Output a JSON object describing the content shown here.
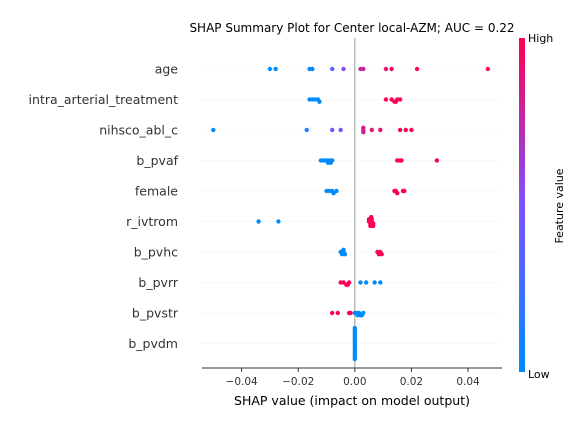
{
  "chart_data": {
    "type": "scatter",
    "title": "SHAP Summary Plot for Center local-AZM; AUC = 0.22",
    "xlabel": "SHAP value (impact on model output)",
    "ylabel": "",
    "xlim": [
      -0.054,
      0.052
    ],
    "xticks": [
      -0.04,
      -0.02,
      0.0,
      0.02,
      0.04
    ],
    "xtick_labels": [
      "−0.04",
      "−0.02",
      "0.00",
      "0.02",
      "0.04"
    ],
    "grid": false,
    "features": [
      "age",
      "intra_arterial_treatment",
      "nihsco_abl_c",
      "b_pvaf",
      "female",
      "r_ivtrom",
      "b_pvhc",
      "b_pvrr",
      "b_pvstr",
      "b_pvdm"
    ],
    "colorbar": {
      "label": "Feature value",
      "high_label": "High",
      "low_label": "Low",
      "low_color": "#008bfb",
      "mid_color": "#7c52ff",
      "high_color": "#ff0052"
    },
    "points": [
      [
        {
          "x": -0.03,
          "c": 0.0
        },
        {
          "x": -0.028,
          "c": 0.0
        },
        {
          "x": -0.016,
          "c": 0.0
        },
        {
          "x": -0.015,
          "c": 0.05
        },
        {
          "x": -0.008,
          "c": 0.35
        },
        {
          "x": -0.004,
          "c": 0.55
        },
        {
          "x": 0.002,
          "c": 0.75
        },
        {
          "x": 0.003,
          "c": 0.8
        },
        {
          "x": 0.011,
          "c": 0.9
        },
        {
          "x": 0.013,
          "c": 0.95
        },
        {
          "x": 0.022,
          "c": 1.0
        },
        {
          "x": 0.047,
          "c": 1.0
        }
      ],
      [
        {
          "x": -0.016,
          "c": 0.0
        },
        {
          "x": -0.015,
          "c": 0.0
        },
        {
          "x": -0.014,
          "c": 0.0
        },
        {
          "x": -0.013,
          "c": 0.0
        },
        {
          "x": -0.0125,
          "c": 0.0
        },
        {
          "x": 0.011,
          "c": 1.0
        },
        {
          "x": 0.013,
          "c": 1.0
        },
        {
          "x": 0.014,
          "c": 1.0
        },
        {
          "x": 0.015,
          "c": 1.0
        },
        {
          "x": 0.016,
          "c": 1.0
        },
        {
          "x": 0.0145,
          "c": 1.0
        }
      ],
      [
        {
          "x": -0.05,
          "c": 0.0
        },
        {
          "x": -0.017,
          "c": 0.1
        },
        {
          "x": -0.008,
          "c": 0.4
        },
        {
          "x": -0.005,
          "c": 0.5
        },
        {
          "x": 0.003,
          "c": 0.75
        },
        {
          "x": 0.003,
          "c": 0.8
        },
        {
          "x": 0.003,
          "c": 0.85
        },
        {
          "x": 0.006,
          "c": 0.9
        },
        {
          "x": 0.009,
          "c": 0.95
        },
        {
          "x": 0.016,
          "c": 1.0
        },
        {
          "x": 0.018,
          "c": 1.0
        },
        {
          "x": 0.02,
          "c": 1.0
        }
      ],
      [
        {
          "x": -0.012,
          "c": 0.0
        },
        {
          "x": -0.011,
          "c": 0.0
        },
        {
          "x": -0.01,
          "c": 0.0
        },
        {
          "x": -0.009,
          "c": 0.0
        },
        {
          "x": -0.008,
          "c": 0.0
        },
        {
          "x": -0.0095,
          "c": 0.0
        },
        {
          "x": -0.0085,
          "c": 0.0
        },
        {
          "x": 0.015,
          "c": 1.0
        },
        {
          "x": 0.016,
          "c": 1.0
        },
        {
          "x": 0.0165,
          "c": 1.0
        },
        {
          "x": 0.029,
          "c": 1.0
        }
      ],
      [
        {
          "x": -0.01,
          "c": 0.0
        },
        {
          "x": -0.009,
          "c": 0.0
        },
        {
          "x": -0.008,
          "c": 0.0
        },
        {
          "x": -0.0075,
          "c": 0.0
        },
        {
          "x": -0.0065,
          "c": 0.0
        },
        {
          "x": 0.014,
          "c": 1.0
        },
        {
          "x": 0.0145,
          "c": 1.0
        },
        {
          "x": 0.015,
          "c": 1.0
        },
        {
          "x": 0.017,
          "c": 1.0
        },
        {
          "x": 0.0175,
          "c": 1.0
        }
      ],
      [
        {
          "x": -0.034,
          "c": 0.0
        },
        {
          "x": -0.027,
          "c": 0.0
        },
        {
          "x": 0.005,
          "c": 1.0
        },
        {
          "x": 0.0055,
          "c": 1.0
        },
        {
          "x": 0.006,
          "c": 1.0
        },
        {
          "x": 0.0065,
          "c": 1.0
        },
        {
          "x": 0.005,
          "c": 1.0
        },
        {
          "x": 0.006,
          "c": 1.0
        },
        {
          "x": 0.0055,
          "c": 1.0
        },
        {
          "x": 0.0065,
          "c": 1.0
        },
        {
          "x": 0.0058,
          "c": 1.0
        }
      ],
      [
        {
          "x": -0.005,
          "c": 0.0
        },
        {
          "x": -0.0045,
          "c": 0.0
        },
        {
          "x": -0.004,
          "c": 0.0
        },
        {
          "x": -0.0035,
          "c": 0.0
        },
        {
          "x": -0.004,
          "c": 0.0
        },
        {
          "x": 0.008,
          "c": 1.0
        },
        {
          "x": 0.0085,
          "c": 1.0
        },
        {
          "x": 0.009,
          "c": 1.0
        },
        {
          "x": 0.0095,
          "c": 1.0
        }
      ],
      [
        {
          "x": -0.005,
          "c": 1.0
        },
        {
          "x": -0.004,
          "c": 1.0
        },
        {
          "x": -0.003,
          "c": 1.0
        },
        {
          "x": -0.002,
          "c": 1.0
        },
        {
          "x": -0.0025,
          "c": 1.0
        },
        {
          "x": 0.002,
          "c": 0.0
        },
        {
          "x": 0.004,
          "c": 0.0
        },
        {
          "x": 0.007,
          "c": 0.0
        },
        {
          "x": 0.009,
          "c": 0.0
        }
      ],
      [
        {
          "x": -0.008,
          "c": 1.0
        },
        {
          "x": -0.006,
          "c": 1.0
        },
        {
          "x": -0.002,
          "c": 1.0
        },
        {
          "x": -0.0015,
          "c": 1.0
        },
        {
          "x": 0.0,
          "c": 0.0
        },
        {
          "x": 0.0008,
          "c": 0.0
        },
        {
          "x": 0.0015,
          "c": 0.0
        },
        {
          "x": 0.002,
          "c": 0.0
        },
        {
          "x": 0.003,
          "c": 0.0
        },
        {
          "x": 0.0025,
          "c": 0.0
        },
        {
          "x": 0.001,
          "c": 0.0
        }
      ],
      [
        {
          "x": 0.0,
          "c": 0.0
        },
        {
          "x": 0.0,
          "c": 0.0
        },
        {
          "x": 0.0,
          "c": 0.0
        },
        {
          "x": 0.0,
          "c": 0.0
        },
        {
          "x": 0.0,
          "c": 0.0
        },
        {
          "x": 0.0,
          "c": 0.0
        },
        {
          "x": 0.0,
          "c": 0.0
        },
        {
          "x": 0.0,
          "c": 0.0
        },
        {
          "x": 0.0,
          "c": 0.0
        },
        {
          "x": 0.0,
          "c": 0.0
        },
        {
          "x": 0.0,
          "c": 0.0
        },
        {
          "x": 0.0,
          "c": 0.0
        },
        {
          "x": 0.0,
          "c": 0.0
        },
        {
          "x": 0.0,
          "c": 0.0
        },
        {
          "x": 0.0,
          "c": 0.0
        }
      ]
    ]
  }
}
